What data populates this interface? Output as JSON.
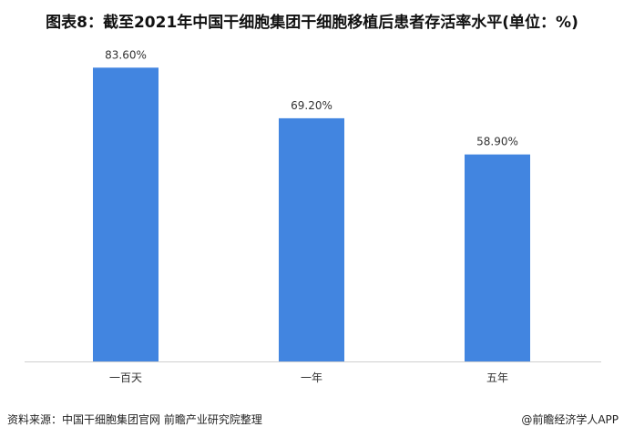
{
  "title": "图表8：截至2021年中国干细胞集团干细胞移植后患者存活率水平(单位：%)",
  "source": "资料来源：中国干细胞集团官网 前瞻产业研究院整理",
  "credit": "@前瞻经济学人APP",
  "chart_data": {
    "type": "bar",
    "title": "图表8：截至2021年中国干细胞集团干细胞移植后患者存活率水平(单位：%)",
    "categories": [
      "一百天",
      "一年",
      "五年"
    ],
    "values": [
      83.6,
      69.2,
      58.9
    ],
    "data_labels": [
      "83.60%",
      "69.20%",
      "58.90%"
    ],
    "ylim": [
      0,
      100
    ],
    "grid": false,
    "bar_color": "#4285e0",
    "axis_color": "#d0d0d0"
  }
}
